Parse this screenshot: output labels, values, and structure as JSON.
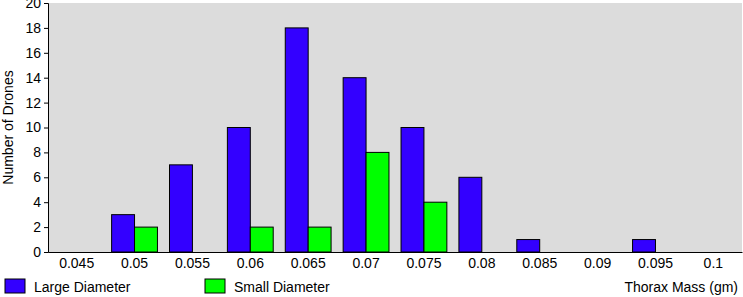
{
  "chart_data": {
    "type": "bar",
    "y_label": "Number of Drones",
    "x_label": "Thorax Mass (gm)",
    "categories": [
      "0.045",
      "0.05",
      "0.055",
      "0.06",
      "0.065",
      "0.07",
      "0.075",
      "0.08",
      "0.085",
      "0.09",
      "0.095",
      "0.1"
    ],
    "series": [
      {
        "name": "Large Diameter",
        "color": "#3300ff",
        "values": [
          0,
          3,
          7,
          10,
          18,
          14,
          10,
          6,
          1,
          0,
          1,
          0
        ]
      },
      {
        "name": "Small Diameter",
        "color": "#00ff00",
        "values": [
          0,
          2,
          0,
          2,
          2,
          8,
          4,
          0,
          0,
          0,
          0,
          0
        ]
      }
    ],
    "ylim": [
      0,
      20
    ],
    "yticks": [
      0,
      2,
      4,
      6,
      8,
      10,
      12,
      14,
      16,
      18,
      20
    ],
    "grid": false,
    "legend": "bottom"
  }
}
